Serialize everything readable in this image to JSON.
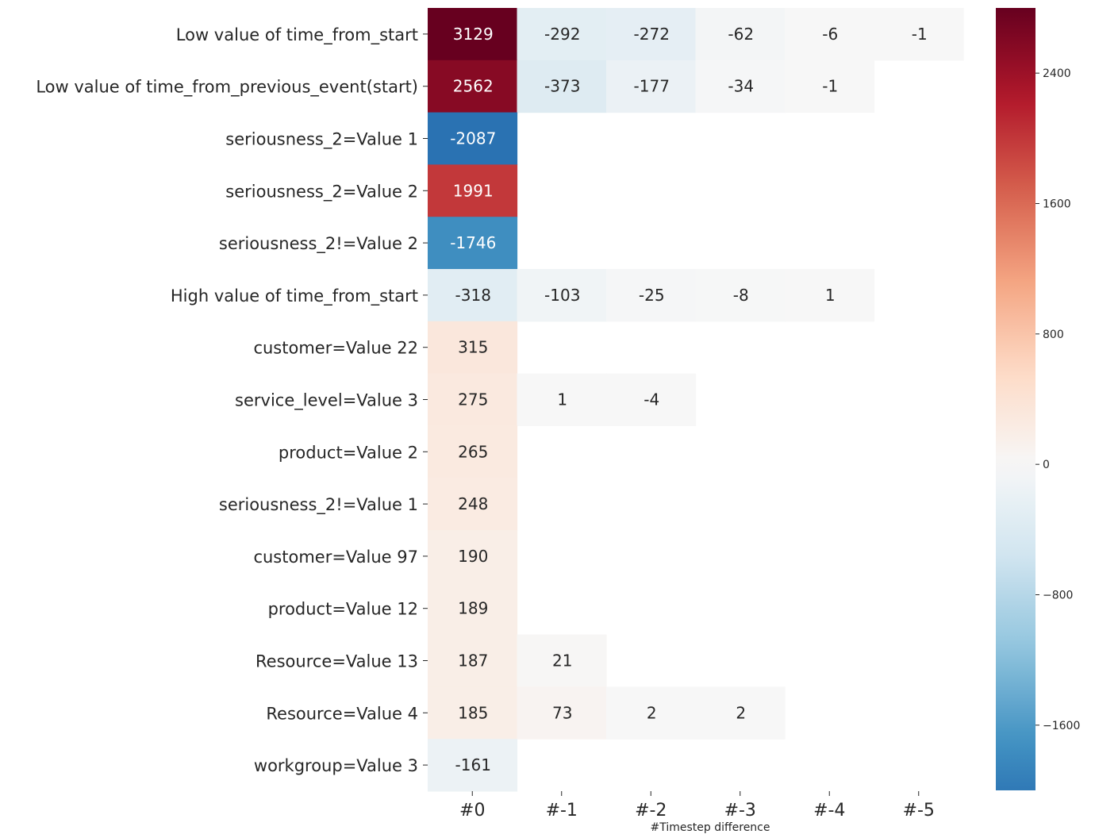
{
  "chart_data": {
    "type": "heatmap",
    "title": "",
    "xlabel": "#Timestep difference",
    "ylabel": "",
    "x_categories": [
      "#0",
      "#-1",
      "#-2",
      "#-3",
      "#-4",
      "#-5"
    ],
    "y_categories": [
      "Low value of time_from_start",
      "Low value of time_from_previous_event(start)",
      "seriousness_2=Value 1",
      "seriousness_2=Value 2",
      "seriousness_2!=Value 2",
      "High value of time_from_start",
      "customer=Value 22",
      "service_level=Value 3",
      "product=Value 2",
      "seriousness_2!=Value 1",
      "customer=Value 97",
      "product=Value 12",
      "Resource=Value 13",
      "Resource=Value 4",
      "workgroup=Value 3"
    ],
    "values": [
      [
        3129,
        -292,
        -272,
        -62,
        -6,
        -1
      ],
      [
        2562,
        -373,
        -177,
        -34,
        -1,
        null
      ],
      [
        -2087,
        null,
        null,
        null,
        null,
        null
      ],
      [
        1991,
        null,
        null,
        null,
        null,
        null
      ],
      [
        -1746,
        null,
        null,
        null,
        null,
        null
      ],
      [
        -318,
        -103,
        -25,
        -8,
        1,
        null
      ],
      [
        315,
        null,
        null,
        null,
        null,
        null
      ],
      [
        275,
        1,
        -4,
        null,
        null,
        null
      ],
      [
        265,
        null,
        null,
        null,
        null,
        null
      ],
      [
        248,
        null,
        null,
        null,
        null,
        null
      ],
      [
        190,
        null,
        null,
        null,
        null,
        null
      ],
      [
        189,
        null,
        null,
        null,
        null,
        null
      ],
      [
        187,
        21,
        null,
        null,
        null,
        null
      ],
      [
        185,
        73,
        2,
        2,
        null,
        null
      ],
      [
        -161,
        null,
        null,
        null,
        null,
        null
      ]
    ],
    "colorscale": "RdBu_r",
    "color_range": [
      -2000,
      2800
    ],
    "colorbar": {
      "ticks": [
        2400,
        1600,
        800,
        0,
        -800,
        -1600
      ],
      "tick_labels": [
        "2400",
        "1600",
        "800",
        "0",
        "−800",
        "−1600"
      ]
    },
    "grid": false,
    "legend": "colorbar-right"
  }
}
